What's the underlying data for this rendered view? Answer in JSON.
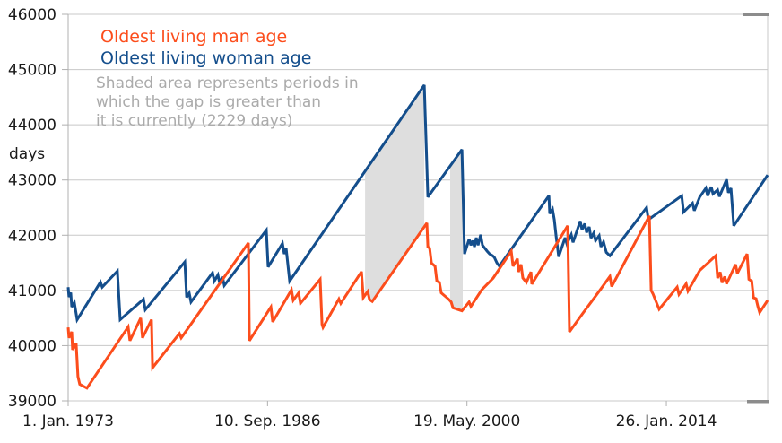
{
  "chart_data": {
    "type": "line",
    "ylabel": "days",
    "ylim": [
      39000,
      46000
    ],
    "xlim": [
      0,
      17540
    ],
    "x_unit": "days since 1. Jan. 1973",
    "grid": true,
    "yticks": [
      39000,
      40000,
      41000,
      42000,
      43000,
      44000,
      45000,
      46000
    ],
    "xticks": [
      {
        "x": 0,
        "label": "1. Jan. 1973"
      },
      {
        "x": 5000,
        "label": "10. Sep. 1986"
      },
      {
        "x": 10000,
        "label": "19. May. 2000"
      },
      {
        "x": 15000,
        "label": "26. Jan. 2014"
      }
    ],
    "legend": [
      {
        "name": "Oldest living man age",
        "color": "#FC4D1C"
      },
      {
        "name": "Oldest living woman age",
        "color": "#144E8C"
      }
    ],
    "annotation": {
      "lines": [
        "Shaded area represents periods in",
        "which the gap is greater than",
        "it is currently (2229 days)"
      ],
      "color": "#ABABAB"
    },
    "shaded_color": "#DEDEDE",
    "shaded_bands_x": [
      [
        7445,
        8930
      ],
      [
        9580,
        9895
      ]
    ],
    "series": [
      {
        "name": "Oldest living woman age",
        "color": "#144E8C",
        "points": [
          [
            0,
            41060
          ],
          [
            20,
            40880
          ],
          [
            65,
            40960
          ],
          [
            90,
            40700
          ],
          [
            155,
            40780
          ],
          [
            225,
            40470
          ],
          [
            810,
            41150
          ],
          [
            855,
            41060
          ],
          [
            1235,
            41350
          ],
          [
            1305,
            40470
          ],
          [
            1890,
            40840
          ],
          [
            1935,
            40650
          ],
          [
            2925,
            41515
          ],
          [
            2970,
            40875
          ],
          [
            3035,
            40950
          ],
          [
            3080,
            40790
          ],
          [
            3620,
            41320
          ],
          [
            3665,
            41170
          ],
          [
            3755,
            41280
          ],
          [
            3800,
            41130
          ],
          [
            3870,
            41250
          ],
          [
            3915,
            41090
          ],
          [
            4970,
            42090
          ],
          [
            5015,
            41425
          ],
          [
            5375,
            41850
          ],
          [
            5420,
            41660
          ],
          [
            5465,
            41770
          ],
          [
            5555,
            41170
          ],
          [
            8930,
            44720
          ],
          [
            9020,
            42690
          ],
          [
            9875,
            43550
          ],
          [
            9940,
            41660
          ],
          [
            10055,
            41930
          ],
          [
            10100,
            41820
          ],
          [
            10145,
            41900
          ],
          [
            10190,
            41790
          ],
          [
            10235,
            41955
          ],
          [
            10280,
            41820
          ],
          [
            10345,
            42010
          ],
          [
            10390,
            41820
          ],
          [
            10505,
            41710
          ],
          [
            10570,
            41660
          ],
          [
            10640,
            41630
          ],
          [
            10685,
            41600
          ],
          [
            10750,
            41500
          ],
          [
            10815,
            41440
          ],
          [
            12055,
            42715
          ],
          [
            12075,
            42390
          ],
          [
            12145,
            42470
          ],
          [
            12190,
            42280
          ],
          [
            12235,
            41985
          ],
          [
            12300,
            41610
          ],
          [
            12460,
            41955
          ],
          [
            12505,
            41845
          ],
          [
            12615,
            42010
          ],
          [
            12660,
            41870
          ],
          [
            12840,
            42255
          ],
          [
            12885,
            42100
          ],
          [
            12955,
            42210
          ],
          [
            13000,
            42050
          ],
          [
            13065,
            42150
          ],
          [
            13110,
            41950
          ],
          [
            13180,
            42040
          ],
          [
            13225,
            41900
          ],
          [
            13315,
            41990
          ],
          [
            13360,
            41790
          ],
          [
            13425,
            41880
          ],
          [
            13495,
            41690
          ],
          [
            13585,
            41630
          ],
          [
            14505,
            42500
          ],
          [
            14550,
            42280
          ],
          [
            15385,
            42715
          ],
          [
            15430,
            42420
          ],
          [
            15655,
            42580
          ],
          [
            15700,
            42445
          ],
          [
            15835,
            42690
          ],
          [
            15990,
            42850
          ],
          [
            16035,
            42715
          ],
          [
            16125,
            42875
          ],
          [
            16170,
            42750
          ],
          [
            16285,
            42820
          ],
          [
            16330,
            42700
          ],
          [
            16510,
            43010
          ],
          [
            16555,
            42770
          ],
          [
            16620,
            42850
          ],
          [
            16690,
            42170
          ],
          [
            17540,
            43090
          ]
        ]
      },
      {
        "name": "Oldest living man age",
        "color": "#FC4D1C",
        "points": [
          [
            0,
            40330
          ],
          [
            20,
            40140
          ],
          [
            90,
            40250
          ],
          [
            110,
            39925
          ],
          [
            200,
            40040
          ],
          [
            245,
            39440
          ],
          [
            290,
            39300
          ],
          [
            470,
            39230
          ],
          [
            1505,
            40340
          ],
          [
            1550,
            40090
          ],
          [
            1820,
            40500
          ],
          [
            1865,
            40140
          ],
          [
            2090,
            40470
          ],
          [
            2115,
            39600
          ],
          [
            2790,
            40220
          ],
          [
            2835,
            40140
          ],
          [
            4520,
            41860
          ],
          [
            4545,
            40090
          ],
          [
            5085,
            40700
          ],
          [
            5130,
            40430
          ],
          [
            5600,
            41010
          ],
          [
            5645,
            40820
          ],
          [
            5780,
            40955
          ],
          [
            5825,
            40765
          ],
          [
            6320,
            41200
          ],
          [
            6365,
            40385
          ],
          [
            6390,
            40330
          ],
          [
            6790,
            40845
          ],
          [
            6835,
            40765
          ],
          [
            7355,
            41340
          ],
          [
            7400,
            40870
          ],
          [
            7510,
            40980
          ],
          [
            7555,
            40835
          ],
          [
            7625,
            40800
          ],
          [
            8995,
            42220
          ],
          [
            9020,
            41790
          ],
          [
            9065,
            41765
          ],
          [
            9110,
            41495
          ],
          [
            9200,
            41440
          ],
          [
            9245,
            41170
          ],
          [
            9310,
            41145
          ],
          [
            9355,
            40955
          ],
          [
            9535,
            40845
          ],
          [
            9605,
            40790
          ],
          [
            9650,
            40685
          ],
          [
            9875,
            40630
          ],
          [
            10055,
            40790
          ],
          [
            10100,
            40710
          ],
          [
            10370,
            41010
          ],
          [
            10660,
            41225
          ],
          [
            11110,
            41710
          ],
          [
            11155,
            41440
          ],
          [
            11265,
            41575
          ],
          [
            11290,
            41335
          ],
          [
            11355,
            41470
          ],
          [
            11400,
            41225
          ],
          [
            11490,
            41145
          ],
          [
            11605,
            41335
          ],
          [
            11625,
            41115
          ],
          [
            12525,
            42170
          ],
          [
            12570,
            40250
          ],
          [
            12910,
            40590
          ],
          [
            13290,
            40960
          ],
          [
            13585,
            41255
          ],
          [
            13630,
            41070
          ],
          [
            14575,
            42350
          ],
          [
            14620,
            41000
          ],
          [
            14665,
            40940
          ],
          [
            14820,
            40660
          ],
          [
            15270,
            41060
          ],
          [
            15315,
            40930
          ],
          [
            15495,
            41120
          ],
          [
            15540,
            40990
          ],
          [
            15835,
            41360
          ],
          [
            16240,
            41630
          ],
          [
            16285,
            41225
          ],
          [
            16350,
            41330
          ],
          [
            16395,
            41140
          ],
          [
            16465,
            41250
          ],
          [
            16510,
            41120
          ],
          [
            16735,
            41470
          ],
          [
            16780,
            41310
          ],
          [
            17025,
            41660
          ],
          [
            17070,
            41200
          ],
          [
            17140,
            41170
          ],
          [
            17185,
            40870
          ],
          [
            17250,
            40850
          ],
          [
            17295,
            40710
          ],
          [
            17340,
            40600
          ],
          [
            17540,
            40820
          ]
        ]
      }
    ]
  }
}
